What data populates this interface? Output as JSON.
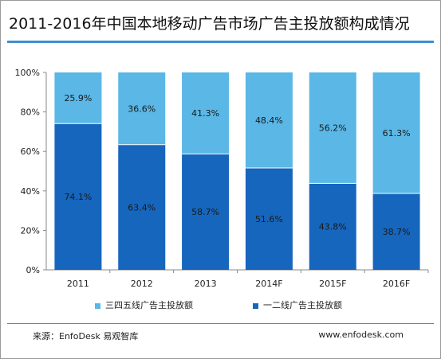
{
  "title": "2011-2016年中国本地移动广告市场广告主投放额构成情况",
  "source": "来源：EnfoDesk 易观智库",
  "site": "www.enfodesk.com",
  "colors": {
    "series_light": "#5ab7e6",
    "series_dark": "#1666bd",
    "rule": "#3f8fcf"
  },
  "chart_data": {
    "type": "bar",
    "stacked": true,
    "percent": true,
    "categories": [
      "2011",
      "2012",
      "2013",
      "2014F",
      "2015F",
      "2016F"
    ],
    "series": [
      {
        "name": "一二线广告主投放额",
        "values": [
          74.1,
          63.4,
          58.7,
          51.6,
          43.8,
          38.7
        ],
        "labels": [
          "74.1%",
          "63.4%",
          "58.7%",
          "51.6%",
          "43.8%",
          "38.7%"
        ]
      },
      {
        "name": "三四五线广告主投放额",
        "values": [
          25.9,
          36.6,
          41.3,
          48.4,
          56.2,
          61.3
        ],
        "labels": [
          "25.9%",
          "36.6%",
          "41.3%",
          "48.4%",
          "56.2%",
          "61.3%"
        ]
      }
    ],
    "ylim": [
      0,
      100
    ],
    "yticks": [
      "0%",
      "20%",
      "40%",
      "60%",
      "80%",
      "100%"
    ],
    "grid": false,
    "legend": "bottom"
  }
}
